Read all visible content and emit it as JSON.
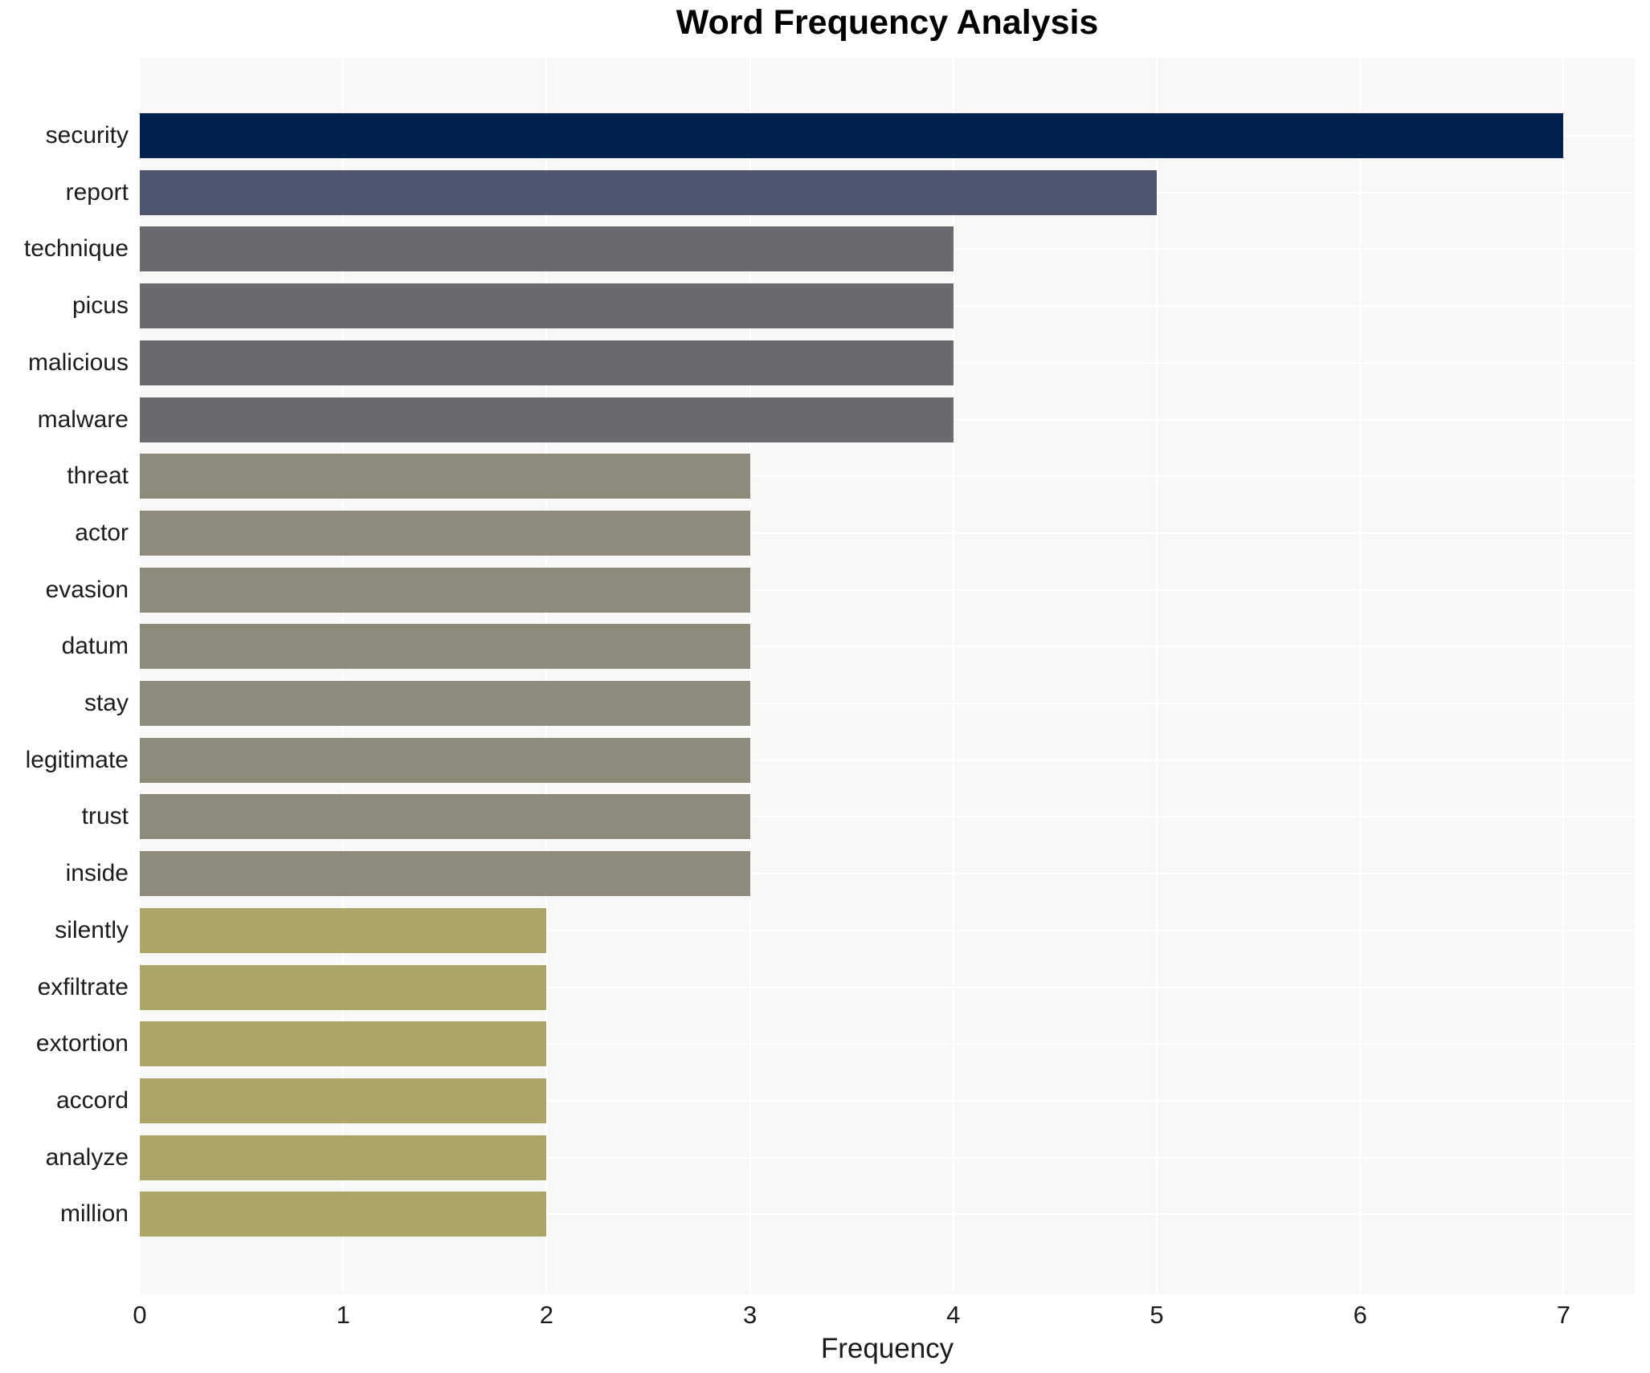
{
  "chart_data": {
    "type": "bar",
    "orientation": "horizontal",
    "title": "Word Frequency Analysis",
    "xlabel": "Frequency",
    "ylabel": "",
    "categories": [
      "security",
      "report",
      "technique",
      "picus",
      "malicious",
      "malware",
      "threat",
      "actor",
      "evasion",
      "datum",
      "stay",
      "legitimate",
      "trust",
      "inside",
      "silently",
      "exfiltrate",
      "extortion",
      "accord",
      "analyze",
      "million"
    ],
    "values": [
      7,
      5,
      4,
      4,
      4,
      4,
      3,
      3,
      3,
      3,
      3,
      3,
      3,
      3,
      2,
      2,
      2,
      2,
      2,
      2
    ],
    "xlim": [
      0,
      7.35
    ],
    "xticks": [
      0,
      1,
      2,
      3,
      4,
      5,
      6,
      7
    ],
    "grid": true,
    "legend": false,
    "colors_by_value": {
      "7": "#03214d",
      "5": "#4d5570",
      "4": "#6a6b70",
      "3": "#8e8a79",
      "2": "#ada469"
    },
    "plot_background": "#f7f7f6",
    "gridline_color": "#ffffff",
    "text_color": "#1c1c1c"
  }
}
